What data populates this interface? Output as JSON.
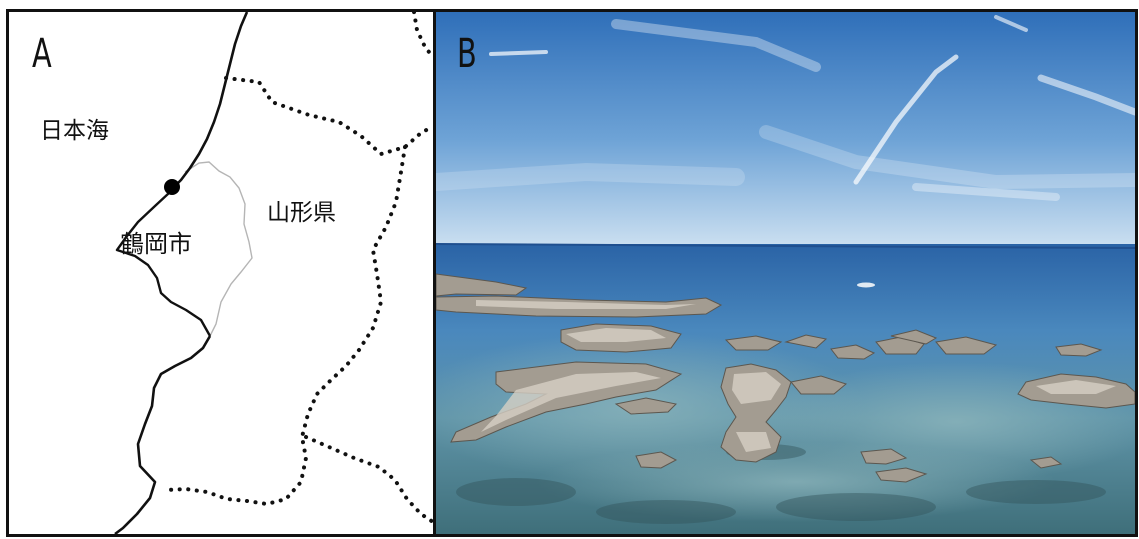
{
  "panels": {
    "a": {
      "letter": "A",
      "labels": {
        "sea": "日本海",
        "city": "鶴岡市",
        "prefecture": "山形県"
      },
      "colors": {
        "coastline": "#111111",
        "city_boundary": "#b5b5b5",
        "prefecture_border": "#111111",
        "location_marker": "#000000"
      }
    },
    "b": {
      "letter": "B",
      "colors": {
        "sky_top": "#2f6fb9",
        "sky_horizon": "#c9def0",
        "sea_far": "#2a63a6",
        "sea_near": "#3f6f7a",
        "rocks": "#a39c91"
      }
    }
  }
}
